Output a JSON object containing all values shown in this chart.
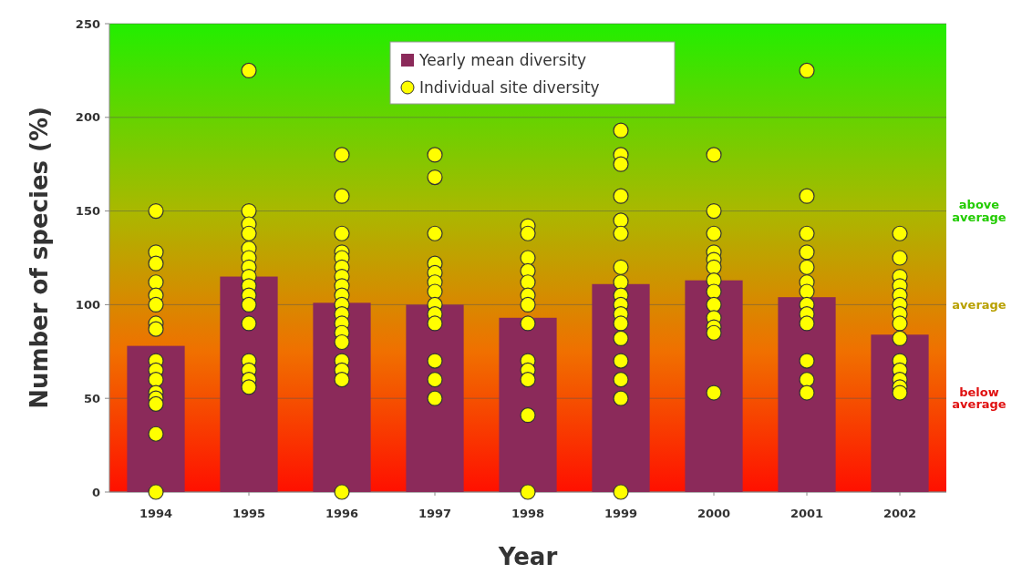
{
  "chart_data": {
    "type": "bar",
    "xlabel": "Year",
    "ylabel": "Number of species (%)",
    "x": [
      1994,
      1995,
      1996,
      1997,
      1998,
      1999,
      2000,
      2001,
      2002
    ],
    "series": [
      {
        "name": "Yearly mean diversity",
        "color": "#8b2a5a",
        "values": [
          78,
          115,
          101,
          100,
          93,
          111,
          113,
          104,
          84
        ]
      },
      {
        "name": "Individual site diversity",
        "type": "scatter",
        "color": "#ffff00",
        "marker": "circle",
        "x": [
          1994,
          1994,
          1994,
          1994,
          1994,
          1994,
          1994,
          1994,
          1994,
          1994,
          1994,
          1994,
          1994,
          1994,
          1994,
          1994,
          1995,
          1995,
          1995,
          1995,
          1995,
          1995,
          1995,
          1995,
          1995,
          1995,
          1995,
          1995,
          1995,
          1995,
          1995,
          1995,
          1996,
          1996,
          1996,
          1996,
          1996,
          1996,
          1996,
          1996,
          1996,
          1996,
          1996,
          1996,
          1996,
          1996,
          1996,
          1996,
          1996,
          1996,
          1997,
          1997,
          1997,
          1997,
          1997,
          1997,
          1997,
          1997,
          1997,
          1997,
          1997,
          1997,
          1997,
          1998,
          1998,
          1998,
          1998,
          1998,
          1998,
          1998,
          1998,
          1998,
          1998,
          1998,
          1998,
          1998,
          1999,
          1999,
          1999,
          1999,
          1999,
          1999,
          1999,
          1999,
          1999,
          1999,
          1999,
          1999,
          1999,
          1999,
          1999,
          1999,
          1999,
          2000,
          2000,
          2000,
          2000,
          2000,
          2000,
          2000,
          2000,
          2000,
          2000,
          2000,
          2000,
          2000,
          2001,
          2001,
          2001,
          2001,
          2001,
          2001,
          2001,
          2001,
          2001,
          2001,
          2001,
          2001,
          2001,
          2002,
          2002,
          2002,
          2002,
          2002,
          2002,
          2002,
          2002,
          2002,
          2002,
          2002,
          2002,
          2002,
          2002
        ],
        "values": [
          150,
          128,
          122,
          112,
          105,
          100,
          90,
          87,
          70,
          65,
          60,
          53,
          50,
          47,
          31,
          0,
          225,
          150,
          143,
          138,
          130,
          125,
          120,
          115,
          110,
          105,
          100,
          90,
          70,
          65,
          60,
          56,
          180,
          158,
          138,
          128,
          125,
          120,
          115,
          110,
          105,
          100,
          95,
          90,
          85,
          80,
          70,
          65,
          60,
          0,
          180,
          168,
          138,
          122,
          117,
          112,
          107,
          100,
          95,
          90,
          70,
          60,
          50,
          142,
          138,
          125,
          118,
          112,
          105,
          100,
          90,
          70,
          65,
          60,
          41,
          0,
          193,
          180,
          175,
          158,
          145,
          138,
          120,
          112,
          105,
          100,
          95,
          90,
          82,
          70,
          60,
          50,
          0,
          180,
          150,
          138,
          128,
          124,
          120,
          113,
          107,
          100,
          93,
          88,
          85,
          53,
          225,
          158,
          138,
          128,
          120,
          112,
          107,
          100,
          95,
          90,
          70,
          60,
          53,
          138,
          125,
          115,
          110,
          105,
          100,
          95,
          90,
          82,
          70,
          65,
          60,
          56,
          53
        ]
      }
    ],
    "xlim": [
      1993.5,
      2002.5
    ],
    "xticks": [
      1994,
      1995,
      1996,
      1997,
      1998,
      1999,
      2000,
      2001,
      2002
    ],
    "ylim": [
      0,
      250
    ],
    "yticks": [
      0,
      50,
      100,
      150,
      200,
      250
    ],
    "grid": "y",
    "legend": "top",
    "annotations": [
      "above average",
      "average",
      "below average"
    ]
  }
}
